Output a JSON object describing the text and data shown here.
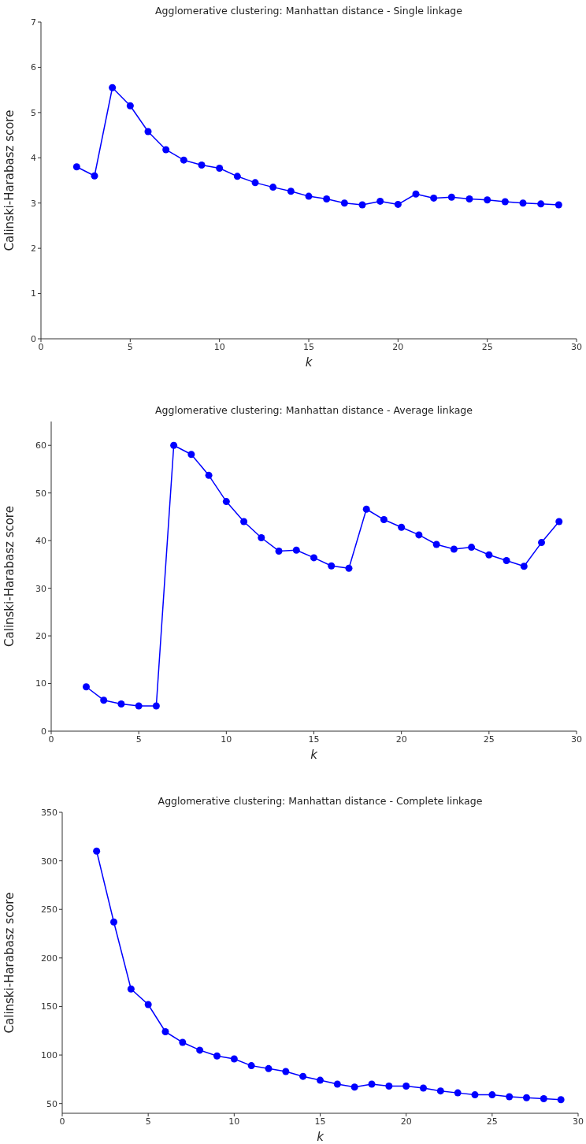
{
  "chart_data": [
    {
      "type": "line",
      "title": "Agglomerative clustering: Manhattan distance - Single linkage",
      "xlabel": "k",
      "ylabel": "Calinski-Harabasz score",
      "x": [
        2,
        3,
        4,
        5,
        6,
        7,
        8,
        9,
        10,
        11,
        12,
        13,
        14,
        15,
        16,
        17,
        18,
        19,
        20,
        21,
        22,
        23,
        24,
        25,
        26,
        27,
        28,
        29
      ],
      "series": [
        {
          "color": "#0000ff",
          "values": [
            3.8,
            3.6,
            5.55,
            5.15,
            4.58,
            4.18,
            3.95,
            3.84,
            3.77,
            3.59,
            3.45,
            3.35,
            3.26,
            3.15,
            3.09,
            3.0,
            2.96,
            3.04,
            2.97,
            3.2,
            3.11,
            3.13,
            3.09,
            3.07,
            3.03,
            3.0,
            2.98,
            2.96
          ]
        }
      ],
      "xlim": [
        0,
        30
      ],
      "xticks": [
        0,
        5,
        10,
        15,
        20,
        25,
        30
      ],
      "ylim": [
        0,
        7
      ],
      "yticks": [
        0,
        1,
        2,
        3,
        4,
        5,
        6,
        7
      ],
      "marker": "circle",
      "line_style": "solid",
      "grid": false,
      "legend": false
    },
    {
      "type": "line",
      "title": "Agglomerative clustering: Manhattan distance - Average linkage",
      "xlabel": "k",
      "ylabel": "Calinski-Harabasz score",
      "x": [
        2,
        3,
        4,
        5,
        6,
        7,
        8,
        9,
        10,
        11,
        12,
        13,
        14,
        15,
        16,
        17,
        18,
        19,
        20,
        21,
        22,
        23,
        24,
        25,
        26,
        27,
        28,
        29
      ],
      "series": [
        {
          "color": "#0000ff",
          "values": [
            9.3,
            6.5,
            5.7,
            5.3,
            5.3,
            60,
            58.1,
            53.7,
            48.2,
            44,
            40.6,
            37.8,
            38,
            36.4,
            34.7,
            34.2,
            46.6,
            44.4,
            42.8,
            41.2,
            39.2,
            38.2,
            38.6,
            37,
            35.8,
            34.6,
            39.6,
            44
          ]
        }
      ],
      "xlim": [
        0,
        30
      ],
      "xticks": [
        0,
        5,
        10,
        15,
        20,
        25,
        30
      ],
      "ylim": [
        0,
        65
      ],
      "yticks": [
        0,
        10,
        20,
        30,
        40,
        50,
        60
      ],
      "marker": "circle",
      "line_style": "solid",
      "grid": false,
      "legend": false
    },
    {
      "type": "line",
      "title": "Agglomerative clustering: Manhattan distance - Complete linkage",
      "xlabel": "k",
      "ylabel": "Calinski-Harabasz score",
      "x": [
        2,
        3,
        4,
        5,
        6,
        7,
        8,
        9,
        10,
        11,
        12,
        13,
        14,
        15,
        16,
        17,
        18,
        19,
        20,
        21,
        22,
        23,
        24,
        25,
        26,
        27,
        28,
        29
      ],
      "series": [
        {
          "color": "#0000ff",
          "values": [
            310,
            237,
            168,
            152,
            124,
            113,
            105,
            99,
            96,
            89,
            86,
            83,
            78,
            74,
            70,
            67,
            70,
            68,
            68,
            66,
            63,
            61,
            59,
            59,
            57,
            56,
            55,
            54
          ]
        }
      ],
      "xlim": [
        0,
        30
      ],
      "xticks": [
        0,
        5,
        10,
        15,
        20,
        25,
        30
      ],
      "ylim": [
        40,
        350
      ],
      "yticks": [
        50,
        100,
        150,
        200,
        250,
        300,
        350
      ],
      "marker": "circle",
      "line_style": "solid",
      "grid": false,
      "legend": false
    }
  ]
}
